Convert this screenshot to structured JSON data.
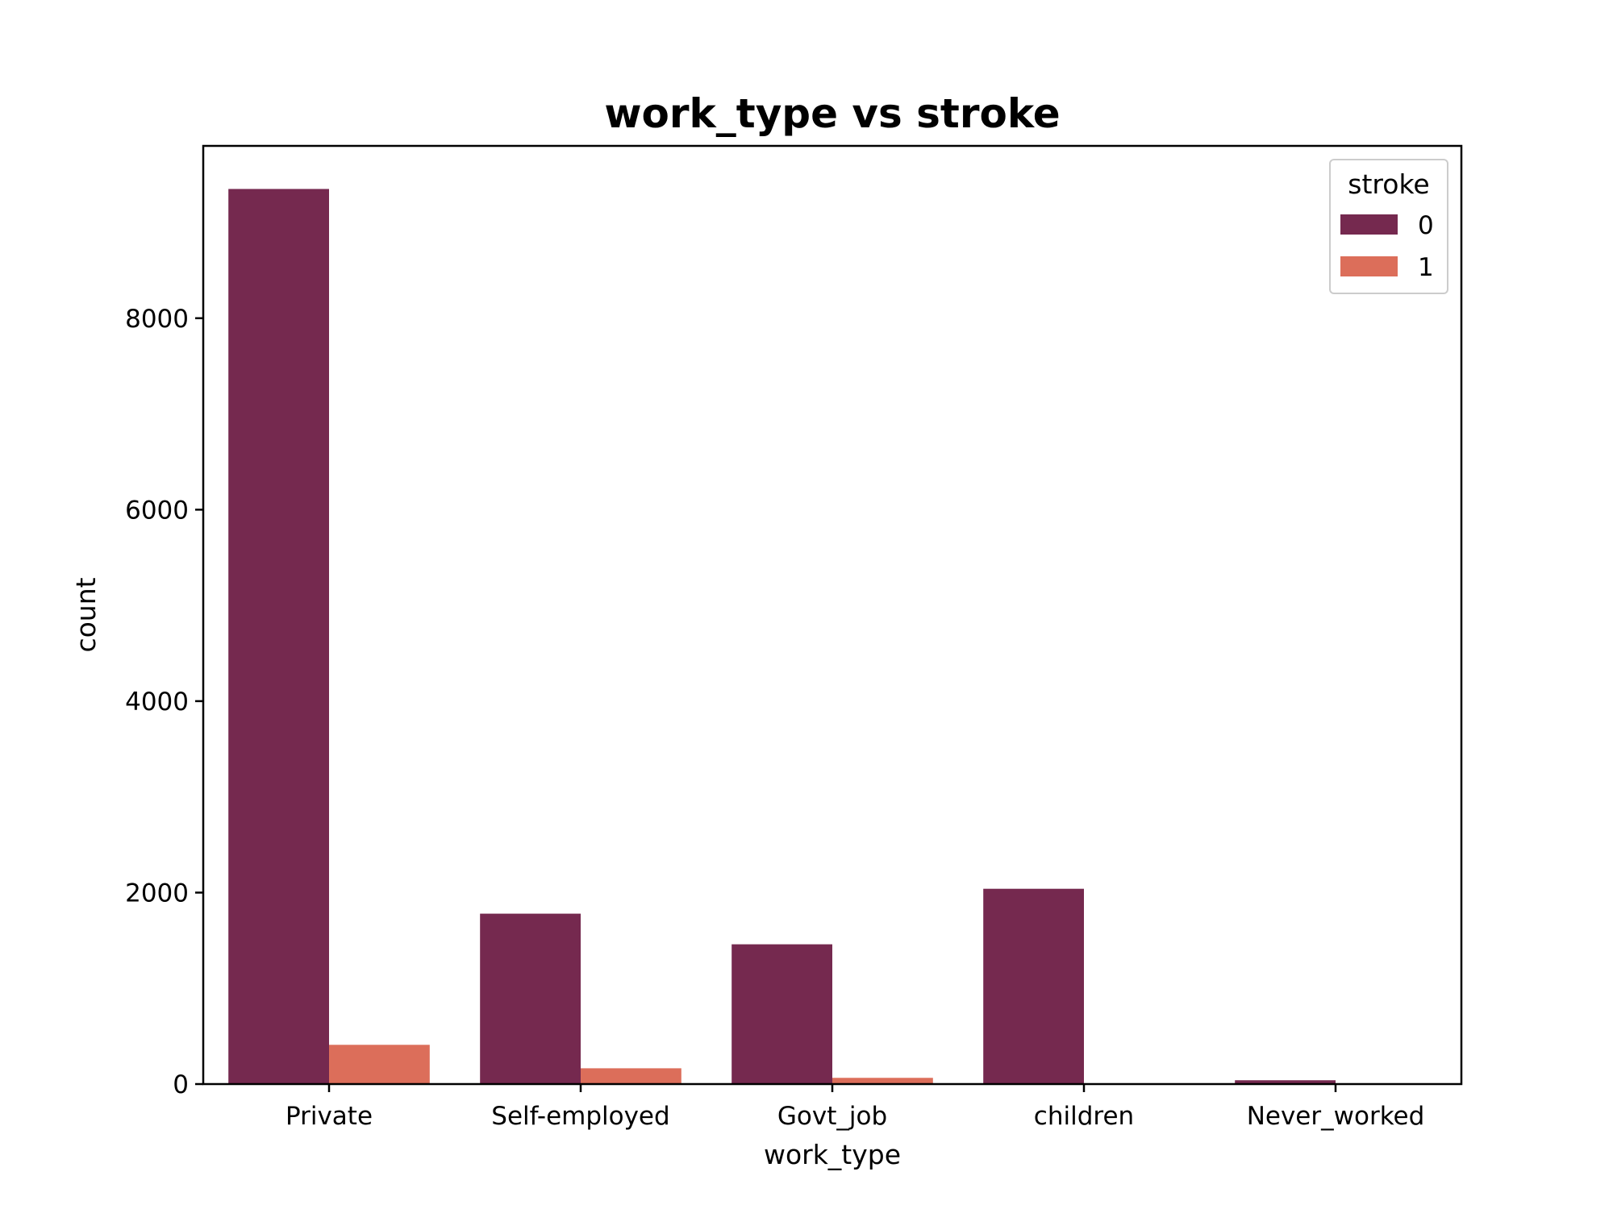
{
  "chart_data": {
    "type": "bar",
    "title": "work_type vs stroke",
    "xlabel": "work_type",
    "ylabel": "count",
    "categories": [
      "Private",
      "Self-employed",
      "Govt_job",
      "children",
      "Never_worked"
    ],
    "series": [
      {
        "name": "0",
        "color": "#75294f",
        "values": [
          9350,
          1780,
          1460,
          2040,
          40
        ]
      },
      {
        "name": "1",
        "color": "#dc6e5a",
        "values": [
          410,
          165,
          65,
          2,
          0
        ]
      }
    ],
    "ylim": [
      0,
      9800
    ],
    "yticks": [
      0,
      2000,
      4000,
      6000,
      8000
    ],
    "grid": false,
    "legend": {
      "title": "stroke",
      "position": "top-right"
    }
  }
}
